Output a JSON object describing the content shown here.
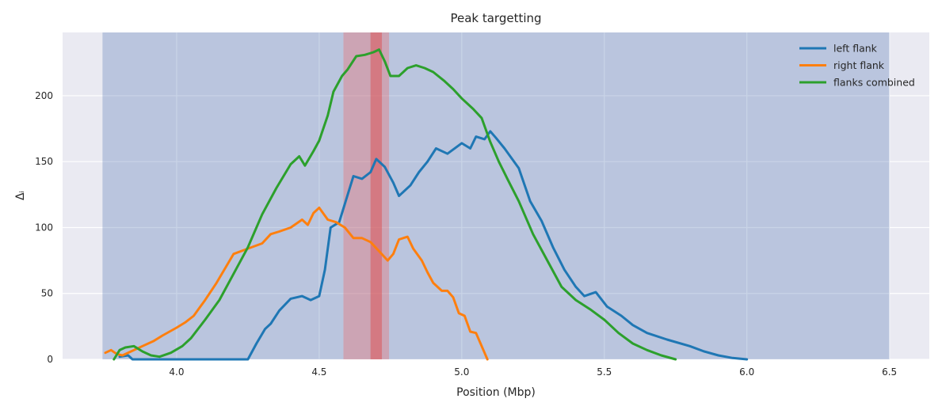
{
  "chart_data": {
    "type": "line",
    "title": "Peak targetting",
    "xlabel": "Position (Mbp)",
    "ylabel": "Δᵢ",
    "xlim": [
      3.6,
      6.64
    ],
    "ylim": [
      0,
      248
    ],
    "xticks": [
      4.0,
      4.5,
      5.0,
      5.5,
      6.0,
      6.5
    ],
    "xtick_labels": [
      "4.0",
      "4.5",
      "5.0",
      "5.5",
      "6.0",
      "6.5"
    ],
    "yticks": [
      0,
      50,
      100,
      150,
      200
    ],
    "ytick_labels": [
      "0",
      "50",
      "100",
      "150",
      "200"
    ],
    "grid": true,
    "legend_position": "top-right",
    "shaded_regions": [
      {
        "x": [
          3.74,
          6.5
        ],
        "color": "#4c72b0",
        "opacity": 0.3
      },
      {
        "x": [
          4.585,
          4.745
        ],
        "color": "#ee6666",
        "opacity": 0.35
      },
      {
        "x": [
          4.68,
          4.72
        ],
        "color": "#dd4444",
        "opacity": 0.45
      }
    ],
    "series": [
      {
        "name": "left flank",
        "color": "#1f77b4",
        "x": [
          3.8,
          3.83,
          3.845,
          4.25,
          4.28,
          4.31,
          4.33,
          4.36,
          4.4,
          4.44,
          4.47,
          4.5,
          4.52,
          4.54,
          4.57,
          4.59,
          4.62,
          4.65,
          4.68,
          4.7,
          4.73,
          4.76,
          4.78,
          4.82,
          4.85,
          4.88,
          4.91,
          4.95,
          5.0,
          5.03,
          5.05,
          5.08,
          5.1,
          5.12,
          5.15,
          5.2,
          5.24,
          5.28,
          5.32,
          5.36,
          5.4,
          5.43,
          5.47,
          5.51,
          5.56,
          5.6,
          5.65,
          5.72,
          5.8,
          5.85,
          5.9,
          5.95,
          6.0
        ],
        "y": [
          2,
          3,
          0,
          0,
          12,
          23,
          27,
          37,
          46,
          48,
          45,
          48,
          68,
          100,
          104,
          118,
          139,
          137,
          142,
          152,
          146,
          134,
          124,
          132,
          142,
          150,
          160,
          156,
          164,
          160,
          169,
          167,
          173,
          168,
          160,
          145,
          120,
          105,
          85,
          68,
          55,
          48,
          51,
          40,
          33,
          26,
          20,
          15,
          10,
          6,
          3,
          1,
          0
        ]
      },
      {
        "name": "right flank",
        "color": "#ff7f0e",
        "x": [
          3.75,
          3.77,
          3.79,
          3.81,
          3.84,
          3.88,
          3.92,
          3.95,
          4.0,
          4.03,
          4.06,
          4.1,
          4.14,
          4.2,
          4.25,
          4.3,
          4.33,
          4.36,
          4.4,
          4.44,
          4.46,
          4.48,
          4.5,
          4.53,
          4.56,
          4.59,
          4.62,
          4.65,
          4.68,
          4.71,
          4.74,
          4.76,
          4.78,
          4.81,
          4.83,
          4.86,
          4.88,
          4.9,
          4.93,
          4.95,
          4.97,
          4.99,
          5.01,
          5.03,
          5.05,
          5.08,
          5.09
        ],
        "y": [
          5,
          7,
          4,
          3,
          6,
          10,
          14,
          18,
          24,
          28,
          33,
          45,
          58,
          80,
          84,
          88,
          95,
          97,
          100,
          106,
          102,
          111,
          115,
          106,
          104,
          100,
          92,
          92,
          89,
          82,
          75,
          80,
          91,
          93,
          84,
          75,
          66,
          58,
          52,
          52,
          47,
          35,
          33,
          21,
          20,
          5,
          0
        ]
      },
      {
        "name": "flanks combined",
        "color": "#2ca02c",
        "x": [
          3.78,
          3.8,
          3.82,
          3.85,
          3.88,
          3.91,
          3.94,
          3.98,
          4.02,
          4.05,
          4.1,
          4.15,
          4.2,
          4.25,
          4.3,
          4.35,
          4.4,
          4.43,
          4.45,
          4.48,
          4.5,
          4.53,
          4.55,
          4.58,
          4.6,
          4.63,
          4.66,
          4.69,
          4.71,
          4.73,
          4.75,
          4.78,
          4.81,
          4.84,
          4.87,
          4.9,
          4.94,
          4.97,
          5.0,
          5.04,
          5.07,
          5.1,
          5.13,
          5.16,
          5.2,
          5.25,
          5.3,
          5.35,
          5.4,
          5.45,
          5.5,
          5.55,
          5.6,
          5.65,
          5.7,
          5.75
        ],
        "y": [
          0,
          7,
          9,
          10,
          6,
          3,
          2,
          5,
          10,
          16,
          30,
          45,
          65,
          85,
          110,
          130,
          148,
          154,
          147,
          158,
          166,
          185,
          203,
          215,
          220,
          230,
          231,
          233,
          235,
          226,
          215,
          215,
          221,
          223,
          221,
          218,
          211,
          205,
          198,
          190,
          183,
          165,
          150,
          137,
          120,
          95,
          75,
          55,
          45,
          38,
          30,
          20,
          12,
          7,
          3,
          0
        ]
      }
    ]
  }
}
